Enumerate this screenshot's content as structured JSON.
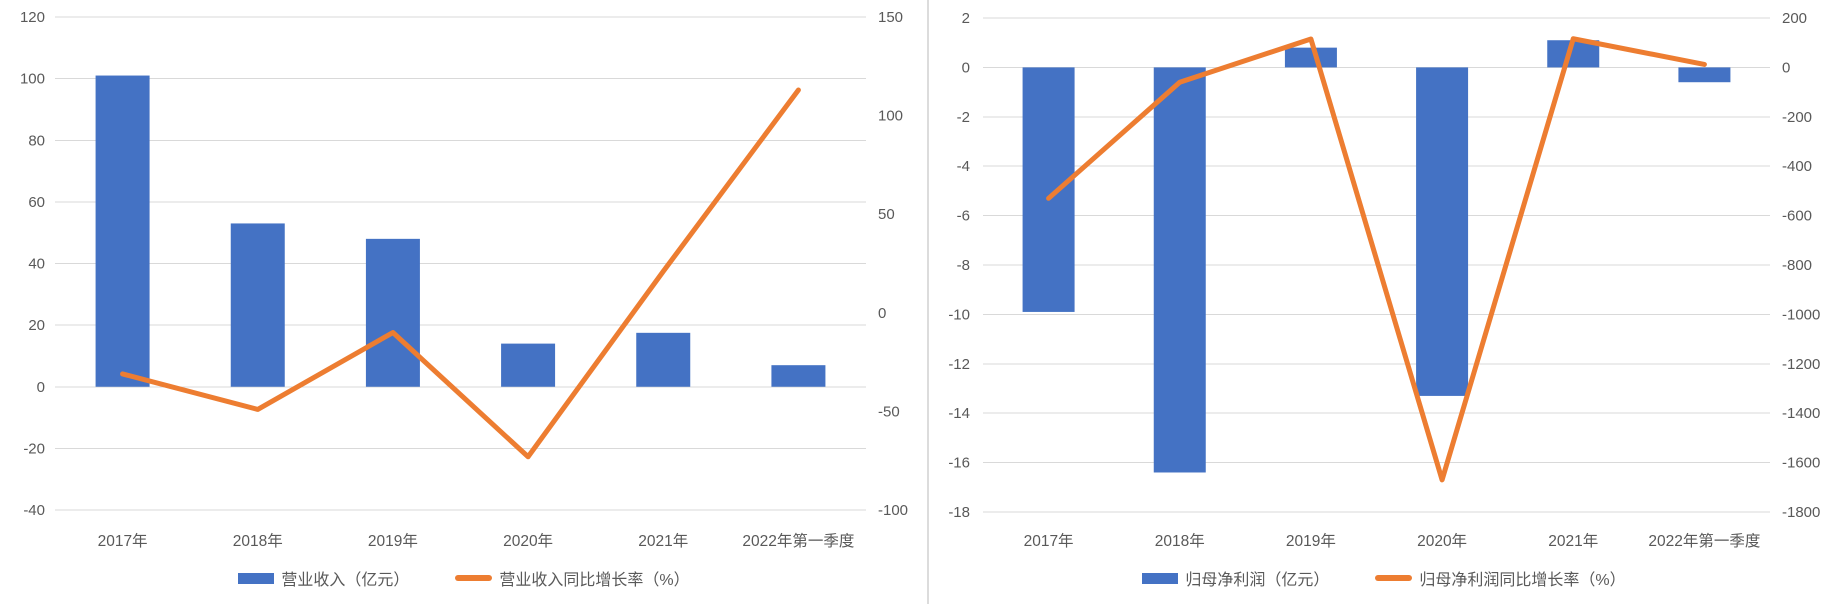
{
  "colors": {
    "bar": "#4472C4",
    "line": "#ED7D31",
    "grid": "#D9D9D9",
    "axis_text": "#595959",
    "divider": "#DCDCDC",
    "background": "#FFFFFF"
  },
  "chart_data": [
    {
      "type": "bar+line combo",
      "title": "",
      "categories": [
        "2017年",
        "2018年",
        "2019年",
        "2020年",
        "2021年",
        "2022年第一季度"
      ],
      "bar_series": {
        "name": "营业收入（亿元）",
        "axis": "left",
        "values": [
          101,
          53,
          48,
          14,
          17.5,
          7
        ]
      },
      "line_series": {
        "name": "营业收入同比增长率（%）",
        "axis": "right",
        "values": [
          -31,
          -49,
          -10,
          -73,
          21,
          113
        ]
      },
      "left_axis": {
        "min": -40,
        "max": 120,
        "ticks": [
          120,
          100,
          80,
          60,
          40,
          20,
          0,
          -20,
          -40
        ]
      },
      "right_axis": {
        "min": -100,
        "max": 150,
        "ticks": [
          150,
          100,
          50,
          0,
          -50,
          -100
        ]
      },
      "grid": true,
      "legend_position": "bottom"
    },
    {
      "type": "bar+line combo",
      "title": "",
      "categories": [
        "2017年",
        "2018年",
        "2019年",
        "2020年",
        "2021年",
        "2022年第一季度"
      ],
      "bar_series": {
        "name": "归母净利润（亿元）",
        "axis": "left",
        "values": [
          -9.9,
          -16.4,
          0.8,
          -13.3,
          1.1,
          -0.6
        ]
      },
      "line_series": {
        "name": "归母净利润同比增长率（%）",
        "axis": "right",
        "values": [
          -530,
          -60,
          115,
          -1670,
          116,
          12
        ]
      },
      "left_axis": {
        "min": -18,
        "max": 2,
        "ticks": [
          2,
          0,
          -2,
          -4,
          -6,
          -8,
          -10,
          -12,
          -14,
          -16,
          -18
        ]
      },
      "right_axis": {
        "min": -1800,
        "max": 200,
        "ticks": [
          200,
          0,
          -200,
          -400,
          -600,
          -800,
          -1000,
          -1200,
          -1400,
          -1600,
          -1800
        ]
      },
      "grid": true,
      "legend_position": "bottom"
    }
  ]
}
